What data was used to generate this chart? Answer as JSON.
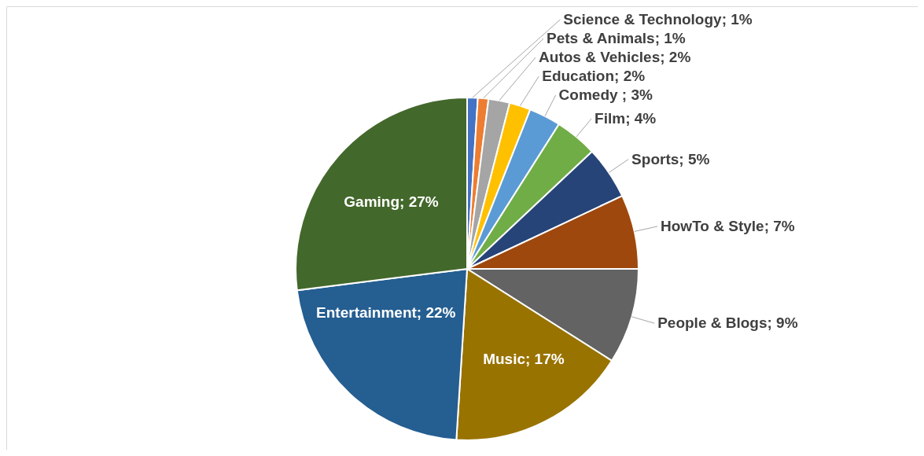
{
  "chart_data": {
    "type": "pie",
    "categories": [
      "Science & Technology",
      "Pets & Animals",
      "Autos & Vehicles",
      "Education",
      "Comedy ",
      "Film",
      "Sports",
      "HowTo & Style",
      "People & Blogs",
      "Music",
      "Entertainment",
      "Gaming"
    ],
    "values": [
      1,
      1,
      2,
      2,
      3,
      4,
      5,
      7,
      9,
      17,
      22,
      27
    ],
    "value_labels": [
      "1%",
      "1%",
      "2%",
      "2%",
      "3%",
      "4%",
      "5%",
      "7%",
      "9%",
      "17%",
      "22%",
      "27%"
    ],
    "colors": [
      "#4472c4",
      "#ed7d31",
      "#a5a5a5",
      "#ffc000",
      "#5b9bd5",
      "#70ad47",
      "#264478",
      "#9e480e",
      "#636363",
      "#997300",
      "#255e91",
      "#43682b"
    ]
  }
}
